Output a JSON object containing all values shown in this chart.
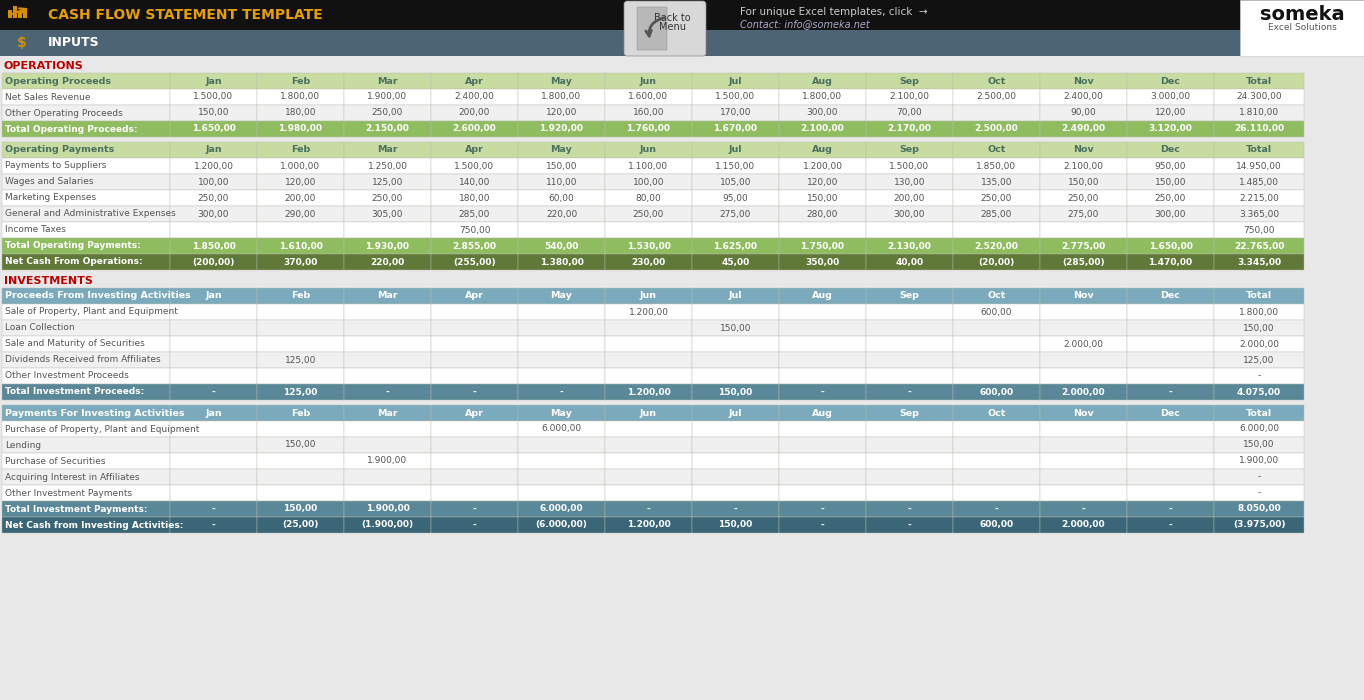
{
  "title": "CASH FLOW STATEMENT TEMPLATE",
  "subtitle": "INPUTS",
  "months": [
    "Jan",
    "Feb",
    "Mar",
    "Apr",
    "May",
    "Jun",
    "Jul",
    "Aug",
    "Sep",
    "Oct",
    "Nov",
    "Dec",
    "Total"
  ],
  "header_black_bg": "#111111",
  "header_blue_bg": "#4d6475",
  "title_color": "#e8a000",
  "subtitle_color": "#ffffff",
  "page_bg": "#e8e8e8",
  "section_label_color": "#bb0000",
  "op_col_hdr_bg": "#c8dba0",
  "op_col_hdr_fg": "#4a7060",
  "op_data_bg1": "#ffffff",
  "op_data_bg2": "#f0f0f0",
  "op_data_fg": "#555555",
  "op_total_bg": "#90bc60",
  "op_total_fg": "#ffffff",
  "op_net_bg": "#607838",
  "op_net_fg": "#ffffff",
  "inv_col_hdr_bg": "#7aaabb",
  "inv_col_hdr_fg": "#ffffff",
  "inv_data_bg1": "#ffffff",
  "inv_data_bg2": "#f0f0f0",
  "inv_data_fg": "#555555",
  "inv_total_bg": "#5a8899",
  "inv_total_fg": "#ffffff",
  "inv_net_bg": "#3a6677",
  "inv_net_fg": "#ffffff",
  "border_color": "#b0b8b0",
  "someka_white_bg": "#ffffff",
  "operations_section": {
    "proceeds_header": "Operating Proceeds",
    "proceeds_rows": [
      {
        "label": "Net Sales Revenue",
        "values": [
          "1.500,00",
          "1.800,00",
          "1.900,00",
          "2.400,00",
          "1.800,00",
          "1.600,00",
          "1.500,00",
          "1.800,00",
          "2.100,00",
          "2.500,00",
          "2.400,00",
          "3.000,00",
          "24.300,00"
        ]
      },
      {
        "label": "Other Operating Proceeds",
        "values": [
          "150,00",
          "180,00",
          "250,00",
          "200,00",
          "120,00",
          "160,00",
          "170,00",
          "300,00",
          "70,00",
          "",
          "90,00",
          "120,00",
          "1.810,00"
        ]
      }
    ],
    "proceeds_total": {
      "label": "Total Operating Proceeds:",
      "values": [
        "1.650,00",
        "1.980,00",
        "2.150,00",
        "2.600,00",
        "1.920,00",
        "1.760,00",
        "1.670,00",
        "2.100,00",
        "2.170,00",
        "2.500,00",
        "2.490,00",
        "3.120,00",
        "26.110,00"
      ]
    },
    "payments_header": "Operating Payments",
    "payments_rows": [
      {
        "label": "Payments to Suppliers",
        "values": [
          "1.200,00",
          "1.000,00",
          "1.250,00",
          "1.500,00",
          "150,00",
          "1.100,00",
          "1.150,00",
          "1.200,00",
          "1.500,00",
          "1.850,00",
          "2.100,00",
          "950,00",
          "14.950,00"
        ]
      },
      {
        "label": "Wages and Salaries",
        "values": [
          "100,00",
          "120,00",
          "125,00",
          "140,00",
          "110,00",
          "100,00",
          "105,00",
          "120,00",
          "130,00",
          "135,00",
          "150,00",
          "150,00",
          "1.485,00"
        ]
      },
      {
        "label": "Marketing Expenses",
        "values": [
          "250,00",
          "200,00",
          "250,00",
          "180,00",
          "60,00",
          "80,00",
          "95,00",
          "150,00",
          "200,00",
          "250,00",
          "250,00",
          "250,00",
          "2.215,00"
        ]
      },
      {
        "label": "General and Administrative Expenses",
        "values": [
          "300,00",
          "290,00",
          "305,00",
          "285,00",
          "220,00",
          "250,00",
          "275,00",
          "280,00",
          "300,00",
          "285,00",
          "275,00",
          "300,00",
          "3.365,00"
        ]
      },
      {
        "label": "Income Taxes",
        "values": [
          "",
          "",
          "",
          "750,00",
          "",
          "",
          "",
          "",
          "",
          "",
          "",
          "",
          "750,00"
        ]
      }
    ],
    "payments_total": {
      "label": "Total Operating Payments:",
      "values": [
        "1.850,00",
        "1.610,00",
        "1.930,00",
        "2.855,00",
        "540,00",
        "1.530,00",
        "1.625,00",
        "1.750,00",
        "2.130,00",
        "2.520,00",
        "2.775,00",
        "1.650,00",
        "22.765,00"
      ]
    },
    "net_cash": {
      "label": "Net Cash From Operations:",
      "values": [
        "(200,00)",
        "370,00",
        "220,00",
        "(255,00)",
        "1.380,00",
        "230,00",
        "45,00",
        "350,00",
        "40,00",
        "(20,00)",
        "(285,00)",
        "1.470,00",
        "3.345,00"
      ]
    }
  },
  "investments_section": {
    "proceeds_header": "Proceeds From Investing Activities",
    "proceeds_rows": [
      {
        "label": "Sale of Property, Plant and Equipment",
        "values": [
          "",
          "",
          "",
          "",
          "",
          "1.200,00",
          "",
          "",
          "",
          "600,00",
          "",
          "",
          "1.800,00"
        ]
      },
      {
        "label": "Loan Collection",
        "values": [
          "",
          "",
          "",
          "",
          "",
          "",
          "150,00",
          "",
          "",
          "",
          "",
          "",
          "150,00"
        ]
      },
      {
        "label": "Sale and Maturity of Securities",
        "values": [
          "",
          "",
          "",
          "",
          "",
          "",
          "",
          "",
          "",
          "",
          "2.000,00",
          "",
          "2.000,00"
        ]
      },
      {
        "label": "Dividends Received from Affiliates",
        "values": [
          "",
          "125,00",
          "",
          "",
          "",
          "",
          "",
          "",
          "",
          "",
          "",
          "",
          "125,00"
        ]
      },
      {
        "label": "Other Investment Proceeds",
        "values": [
          "",
          "",
          "",
          "",
          "",
          "",
          "",
          "",
          "",
          "",
          "",
          "",
          "-"
        ]
      }
    ],
    "proceeds_total": {
      "label": "Total Investment Proceeds:",
      "values": [
        "-",
        "125,00",
        "-",
        "-",
        "-",
        "1.200,00",
        "150,00",
        "-",
        "-",
        "600,00",
        "2.000,00",
        "-",
        "4.075,00"
      ]
    },
    "payments_header": "Payments For Investing Activities",
    "payments_rows": [
      {
        "label": "Purchase of Property, Plant and Equipment",
        "values": [
          "",
          "",
          "",
          "",
          "6.000,00",
          "",
          "",
          "",
          "",
          "",
          "",
          "",
          "6.000,00"
        ]
      },
      {
        "label": "Lending",
        "values": [
          "",
          "150,00",
          "",
          "",
          "",
          "",
          "",
          "",
          "",
          "",
          "",
          "",
          "150,00"
        ]
      },
      {
        "label": "Purchase of Securities",
        "values": [
          "",
          "",
          "1.900,00",
          "",
          "",
          "",
          "",
          "",
          "",
          "",
          "",
          "",
          "1.900,00"
        ]
      },
      {
        "label": "Acquiring Interest in Affiliates",
        "values": [
          "",
          "",
          "",
          "",
          "",
          "",
          "",
          "",
          "",
          "",
          "",
          "",
          "-"
        ]
      },
      {
        "label": "Other Investment Payments",
        "values": [
          "",
          "",
          "",
          "",
          "",
          "",
          "",
          "",
          "",
          "",
          "",
          "",
          "-"
        ]
      }
    ],
    "payments_total": {
      "label": "Total Investment Payments:",
      "values": [
        "-",
        "150,00",
        "1.900,00",
        "-",
        "6.000,00",
        "-",
        "-",
        "-",
        "-",
        "-",
        "-",
        "-",
        "8.050,00"
      ]
    },
    "net_cash": {
      "label": "Net Cash from Investing Activities:",
      "values": [
        "-",
        "(25,00)",
        "(1.900,00)",
        "-",
        "(6.000,00)",
        "1.200,00",
        "150,00",
        "-",
        "-",
        "600,00",
        "2.000,00",
        "-",
        "(3.975,00)"
      ]
    }
  }
}
